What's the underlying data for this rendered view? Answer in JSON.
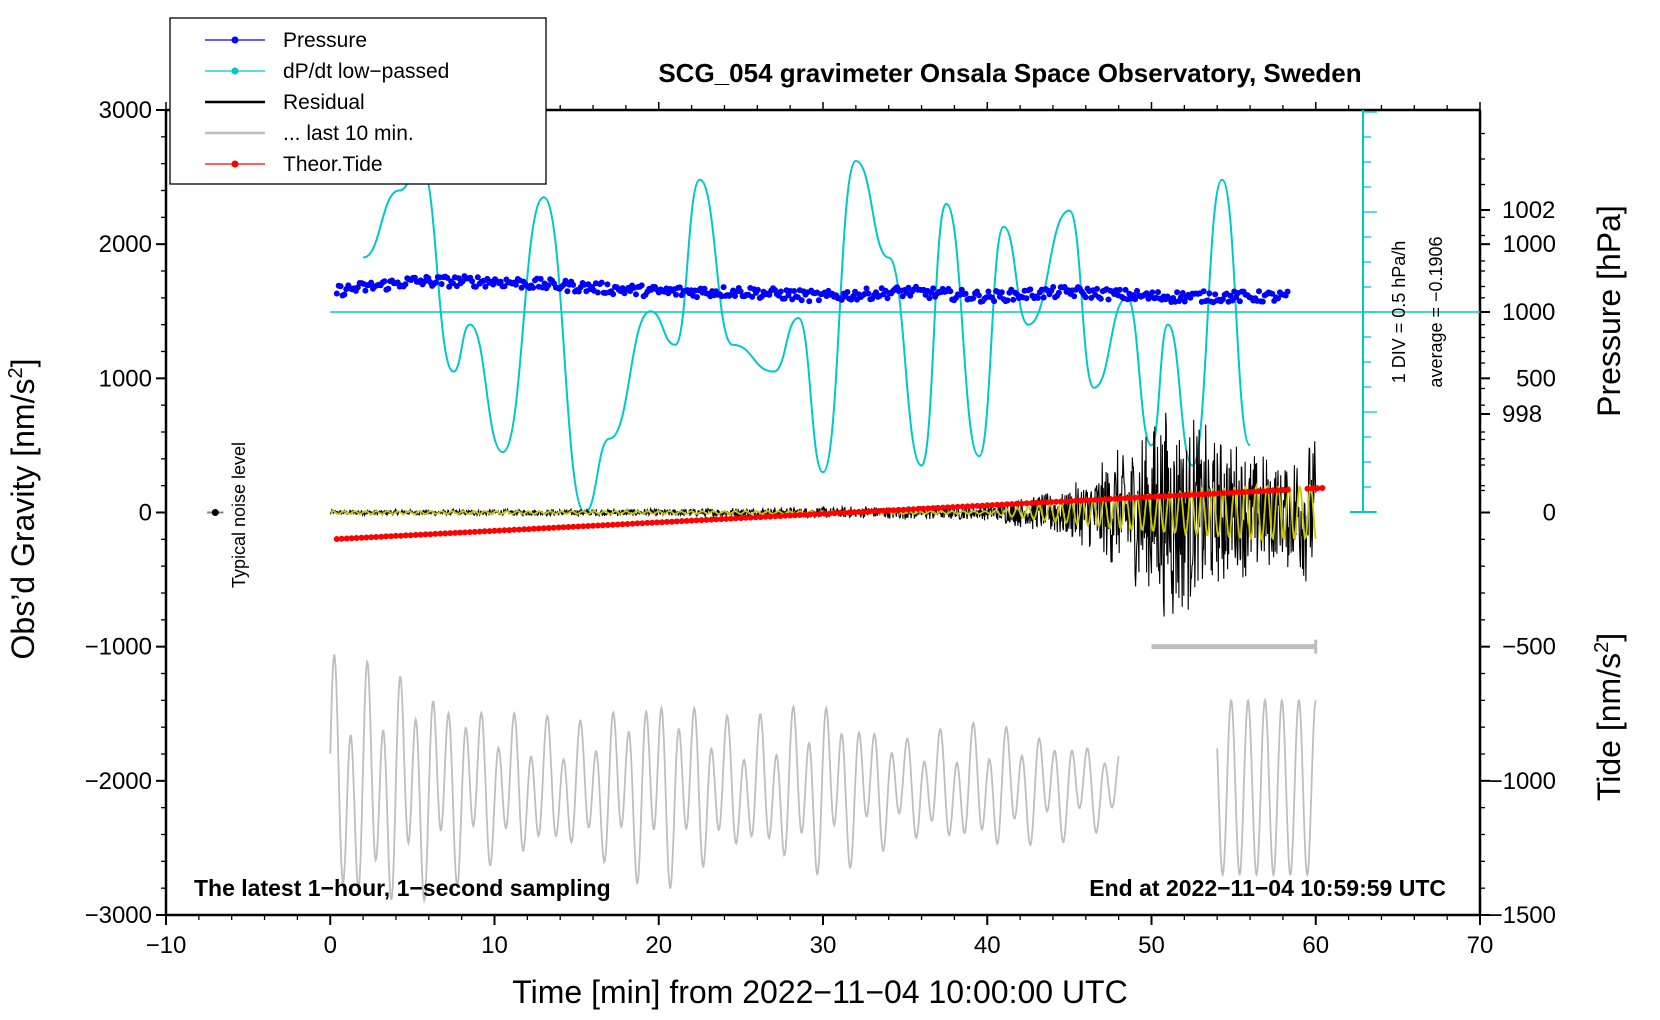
{
  "chart_data": {
    "type": "line",
    "title": "SCG_054 gravimeter Onsala Space Observatory, Sweden",
    "xlabel": "Time [min] from 2022−11−04 10:00:00 UTC",
    "ylabel_left": "Obs’d Gravity [nm/s",
    "ylabel_left_sup": "2",
    "ylabel_left_end": "]",
    "ylabel_right_pressure": "Pressure [hPa]",
    "ylabel_right_tide": "Tide [nm/s",
    "ylabel_right_tide_sup": "2",
    "ylabel_right_tide_end": "]",
    "xlim": [
      -10,
      70
    ],
    "ylim_gravity": [
      -3000,
      3000
    ],
    "ylim_tide": [
      -1500,
      1500
    ],
    "pressure_range_hpa": [
      996.2,
      1003.9
    ],
    "x_ticks": [
      "−10",
      "0",
      "10",
      "20",
      "30",
      "40",
      "50",
      "60",
      "70"
    ],
    "y_ticks_left": [
      "3000",
      "2000",
      "1000",
      "0",
      "−1000",
      "−2000",
      "−3000"
    ],
    "pressure_ticks": [
      "1002",
      "1000",
      "998"
    ],
    "tide_ticks": [
      "1000",
      "500",
      "0",
      "−500",
      "−1000",
      "−1500"
    ],
    "legend": [
      {
        "label": "Pressure",
        "color": "#0000ff",
        "marker": true
      },
      {
        "label": "dP/dt low−passed",
        "color": "#00c8c8",
        "marker": true
      },
      {
        "label": "Residual",
        "color": "#000000",
        "marker": false
      },
      {
        "label": "... last 10 min.",
        "color": "#bebebe",
        "marker": false
      },
      {
        "label": "Theor.Tide",
        "color": "#ff0000",
        "marker": true
      }
    ],
    "annotations": {
      "latest": "The latest 1−hour, 1−second sampling",
      "end": "End at 2022−11−04 10:59:59 UTC",
      "noise": "Typical noise level",
      "div": "1 DIV = 0.5 hPa/h",
      "average": "average = −0.1906"
    },
    "series": [
      {
        "name": "Pressure",
        "unit": "hPa",
        "x": [
          0,
          5,
          10,
          15,
          20,
          25,
          30,
          35,
          40,
          45,
          50,
          55,
          58
        ],
        "values": [
          1000.4,
          1000.6,
          1000.6,
          1000.5,
          1000.4,
          1000.4,
          1000.3,
          1000.4,
          1000.3,
          1000.4,
          1000.3,
          1000.3,
          1000.3
        ]
      },
      {
        "name": "dP/dt low-passed",
        "unit": "nm/s2 display",
        "x": [
          2,
          4.2,
          5.5,
          7.5,
          8.5,
          10.5,
          13,
          15.5,
          17,
          19.5,
          21,
          22.5,
          24.5,
          27,
          28.5,
          30,
          32,
          34,
          36,
          37.5,
          39.5,
          41,
          42.5,
          45,
          46.5,
          48.5,
          50,
          51,
          52.5,
          54.3,
          56
        ],
        "values": [
          1900,
          2400,
          2600,
          1050,
          1400,
          450,
          2350,
          0,
          550,
          1500,
          1250,
          2480,
          1250,
          1050,
          1450,
          300,
          2620,
          1900,
          350,
          2300,
          420,
          2130,
          1400,
          2250,
          930,
          1600,
          500,
          1400,
          350,
          2480,
          500
        ]
      },
      {
        "name": "Residual",
        "unit": "nm/s2",
        "x": [
          0,
          20,
          40,
          45,
          50,
          51,
          52,
          54,
          56,
          58,
          60
        ],
        "amplitude": [
          20,
          30,
          60,
          200,
          700,
          900,
          800,
          600,
          500,
          400,
          600
        ]
      },
      {
        "name": "... last 10 min.",
        "unit": "nm/s2",
        "x": [
          0,
          5,
          10,
          15,
          20,
          25,
          30,
          35,
          40,
          45,
          48,
          50,
          55,
          60
        ],
        "amplitude": [
          1000,
          900,
          600,
          500,
          800,
          500,
          700,
          400,
          500,
          400,
          300,
          0,
          700,
          700
        ]
      },
      {
        "name": "Theor.Tide",
        "unit": "nm/s2",
        "x": [
          0,
          10,
          20,
          30,
          40,
          50,
          60
        ],
        "values": [
          -100,
          -75,
          -50,
          -15,
          20,
          55,
          90
        ]
      }
    ]
  }
}
